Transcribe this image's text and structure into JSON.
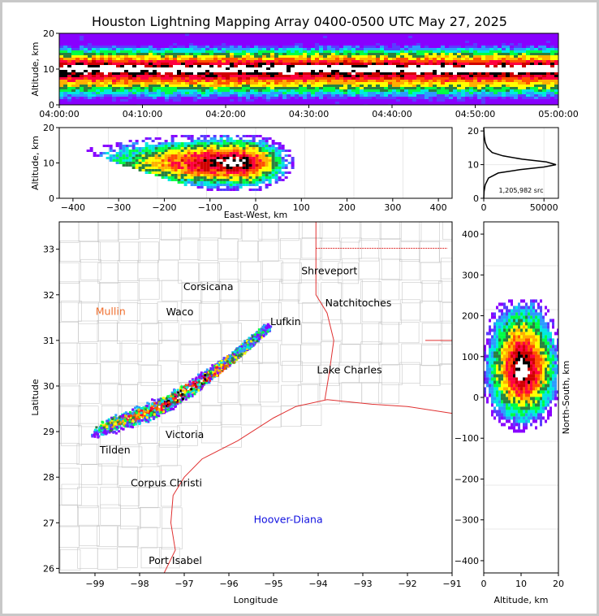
{
  "title": "Houston Lightning Mapping Array 0400-0500 UTC May 27, 2025",
  "colors": {
    "ramp": [
      "#8800ff",
      "#5a3cff",
      "#2d9bff",
      "#00e8e0",
      "#00ff44",
      "#2a8040",
      "#ffff00",
      "#ffb000",
      "#ff5000",
      "#ff0040",
      "#d00000",
      "#000000",
      "#ffffff"
    ]
  },
  "chart_data": [
    {
      "id": "altitude-time",
      "type": "heatmap",
      "ylabel": "Altitude, km",
      "xlim": [
        "04:00:00",
        "05:00:00"
      ],
      "ylim": [
        0,
        20
      ],
      "xticks": [
        "04:00:00",
        "04:10:00",
        "04:20:00",
        "04:30:00",
        "04:40:00",
        "04:50:00",
        "05:00:00"
      ],
      "yticks": [
        "0",
        "10",
        "20"
      ],
      "peak_altitude_km": 10,
      "upper_altitude_km": 17,
      "lower_altitude_km": 1
    },
    {
      "id": "altitude-eastwest",
      "type": "heatmap",
      "xlabel": "East-West, km",
      "ylabel": "Altitude, km",
      "xlim": [
        -430,
        430
      ],
      "ylim": [
        0,
        20
      ],
      "xticks": [
        "−400",
        "−300",
        "−200",
        "−100",
        "0",
        "100",
        "200",
        "300",
        "400"
      ],
      "yticks": [
        "0",
        "10",
        "20"
      ]
    },
    {
      "id": "altitude-histogram",
      "type": "line",
      "annotation": "1,205,982 src",
      "xlim": [
        0,
        62000
      ],
      "ylim": [
        0,
        21
      ],
      "xticks": [
        "0",
        "50000"
      ],
      "yticks": [
        "0",
        "10",
        "20"
      ],
      "x": [
        0,
        300,
        1200,
        4000,
        12000,
        30000,
        50000,
        60000,
        52000,
        32000,
        16000,
        7000,
        3000,
        1200,
        400,
        0
      ],
      "y": [
        0,
        2,
        4,
        6,
        7.5,
        8.5,
        9.3,
        10,
        10.8,
        11.6,
        12.6,
        13.6,
        15,
        16.6,
        18.5,
        21
      ]
    },
    {
      "id": "plan-view",
      "type": "heatmap",
      "xlabel": "Longitude",
      "ylabel": "Latitude",
      "xlim": [
        -99.8,
        -91
      ],
      "ylim": [
        25.9,
        33.6
      ],
      "xticks": [
        "−99",
        "−98",
        "−97",
        "−96",
        "−95",
        "−94",
        "−93",
        "−92",
        "−91"
      ],
      "yticks": [
        "26",
        "27",
        "28",
        "29",
        "30",
        "31",
        "32",
        "33"
      ],
      "places": [
        {
          "name": "Shreveport",
          "lon": -93.75,
          "lat": 32.45,
          "color": "#000000"
        },
        {
          "name": "Corsicana",
          "lon": -96.46,
          "lat": 32.1,
          "color": "#000000"
        },
        {
          "name": "Mullin",
          "lon": -98.65,
          "lat": 31.56,
          "color": "#f07030"
        },
        {
          "name": "Waco",
          "lon": -97.1,
          "lat": 31.55,
          "color": "#000000"
        },
        {
          "name": "Natchitoches",
          "lon": -93.1,
          "lat": 31.75,
          "color": "#000000"
        },
        {
          "name": "Lufkin",
          "lon": -94.73,
          "lat": 31.34,
          "color": "#000000"
        },
        {
          "name": "Lake Charles",
          "lon": -93.3,
          "lat": 30.28,
          "color": "#000000"
        },
        {
          "name": "Victoria",
          "lon": -96.99,
          "lat": 28.86,
          "color": "#000000"
        },
        {
          "name": "Tilden",
          "lon": -98.55,
          "lat": 28.52,
          "color": "#000000"
        },
        {
          "name": "Corpus Christi",
          "lon": -97.4,
          "lat": 27.8,
          "color": "#000000"
        },
        {
          "name": "Hoover-Diana",
          "lon": -94.67,
          "lat": 27.0,
          "color": "#1010e0"
        },
        {
          "name": "Port Isabel",
          "lon": -97.2,
          "lat": 26.1,
          "color": "#000000"
        }
      ],
      "storm_axis": [
        {
          "lon": -98.9,
          "lat": 29.1
        },
        {
          "lon": -97.6,
          "lat": 29.55
        },
        {
          "lon": -96.9,
          "lat": 29.95
        },
        {
          "lon": -96.3,
          "lat": 30.35
        },
        {
          "lon": -95.8,
          "lat": 30.75
        },
        {
          "lon": -95.3,
          "lat": 31.2
        }
      ]
    },
    {
      "id": "altitude-northsouth",
      "type": "heatmap",
      "xlabel": "Altitude, km",
      "ylabel": "North-South, km",
      "xlim": [
        0,
        20
      ],
      "ylim": [
        -430,
        430
      ],
      "xticks": [
        "0",
        "10",
        "20"
      ],
      "yticks": [
        "−400",
        "−300",
        "−200",
        "−100",
        "0",
        "100",
        "200",
        "300",
        "400"
      ]
    }
  ]
}
